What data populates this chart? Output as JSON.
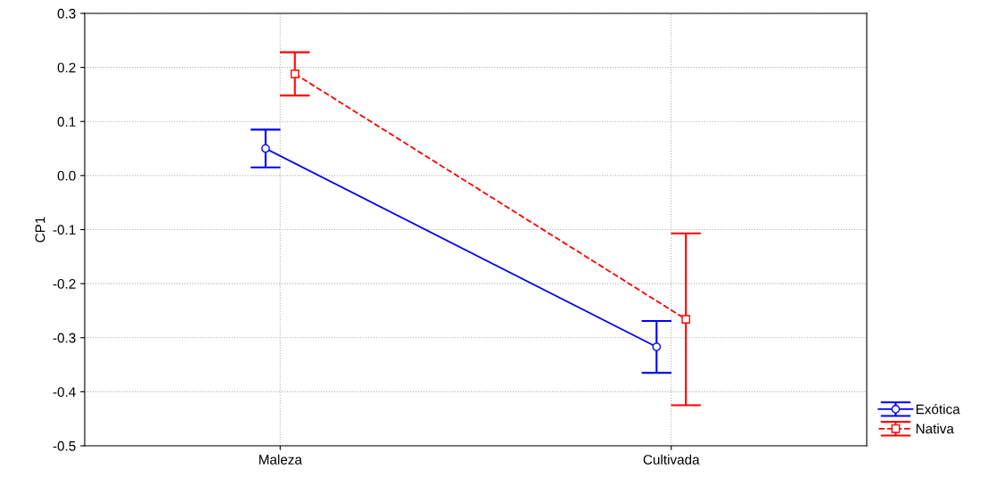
{
  "chart_data": {
    "type": "line",
    "ylabel": "CP1",
    "categories": [
      "Maleza",
      "Cultivada"
    ],
    "series": [
      {
        "name": "Exótica",
        "color": "#0000ff",
        "values": [
          0.05,
          -0.317
        ],
        "errors": [
          0.035,
          0.048
        ],
        "marker": "circle",
        "line_style": "solid"
      },
      {
        "name": "Nativa",
        "color": "#ff0000",
        "values": [
          0.188,
          -0.266
        ],
        "errors": [
          0.04,
          0.159
        ],
        "marker": "square",
        "line_style": "dashed"
      }
    ],
    "ylim": [
      -0.5,
      0.3
    ],
    "yticks": [
      {
        "value": -0.5,
        "label": "-0.5"
      },
      {
        "value": -0.4,
        "label": "-0.4"
      },
      {
        "value": -0.3,
        "label": "-0.3"
      },
      {
        "value": -0.2,
        "label": "-0.2"
      },
      {
        "value": -0.1,
        "label": "-0.1"
      },
      {
        "value": 0,
        "label": "0.0"
      },
      {
        "value": 0.1,
        "label": "0.1"
      },
      {
        "value": 0.2,
        "label": "0.2"
      },
      {
        "value": 0.3,
        "label": "0.3"
      }
    ],
    "grid": true,
    "legend": "bottom right"
  }
}
